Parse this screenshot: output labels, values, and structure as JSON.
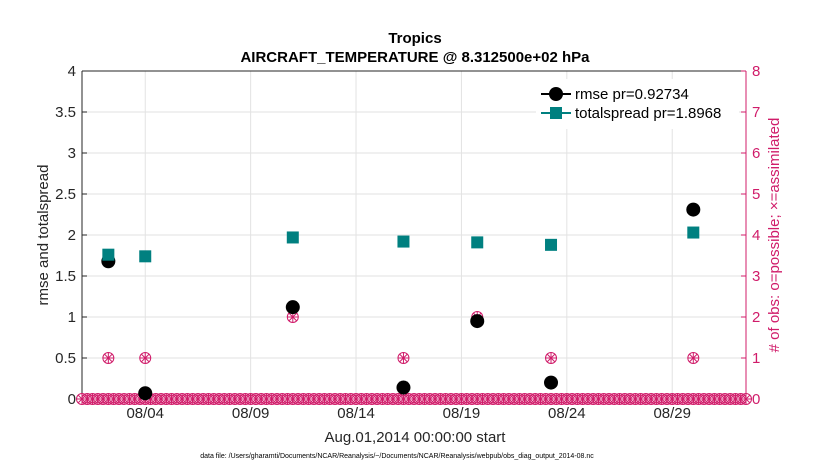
{
  "chart_data": {
    "type": "scatter",
    "title": "Tropics",
    "subtitle": "AIRCRAFT_TEMPERATURE @ 8.312500e+02 hPa",
    "xlabel": "Aug.01,2014 00:00:00 start",
    "ylabel": "rmse and totalspread",
    "ylabel_right": "# of obs: o=possible; ×=assimilated",
    "xlim": [
      0,
      31.5
    ],
    "ylim": [
      0,
      4
    ],
    "ylim_right": [
      0,
      8
    ],
    "x_ticks": [
      {
        "x": 3,
        "label": "08/04"
      },
      {
        "x": 8,
        "label": "08/09"
      },
      {
        "x": 13,
        "label": "08/14"
      },
      {
        "x": 18,
        "label": "08/19"
      },
      {
        "x": 23,
        "label": "08/24"
      },
      {
        "x": 28,
        "label": "08/29"
      }
    ],
    "y_ticks": [
      "0",
      "0.5",
      "1",
      "1.5",
      "2",
      "2.5",
      "3",
      "3.5",
      "4"
    ],
    "y_ticks_right": [
      "0",
      "1",
      "2",
      "3",
      "4",
      "5",
      "6",
      "7",
      "8"
    ],
    "grid": true,
    "legend_position": "top-right",
    "series": [
      {
        "name": "rmse pr=0.92734",
        "color": "#000000",
        "marker": "circle",
        "points": [
          {
            "x": 1.25,
            "y": 1.68
          },
          {
            "x": 3.0,
            "y": 0.07
          },
          {
            "x": 10.0,
            "y": 1.12
          },
          {
            "x": 15.25,
            "y": 0.14
          },
          {
            "x": 18.75,
            "y": 0.95
          },
          {
            "x": 22.25,
            "y": 0.2
          },
          {
            "x": 29.0,
            "y": 2.31
          }
        ]
      },
      {
        "name": "totalspread pr=1.8968",
        "color": "#008080",
        "marker": "square",
        "points": [
          {
            "x": 1.25,
            "y": 1.76
          },
          {
            "x": 3.0,
            "y": 1.74
          },
          {
            "x": 10.0,
            "y": 1.97
          },
          {
            "x": 15.25,
            "y": 1.92
          },
          {
            "x": 18.75,
            "y": 1.91
          },
          {
            "x": 22.25,
            "y": 1.88
          },
          {
            "x": 29.0,
            "y": 2.03
          }
        ]
      }
    ],
    "obs_counts": {
      "name": "# of obs",
      "color": "#d01c6a",
      "axis": "right",
      "step": 0.25,
      "start": 0,
      "end": 31.5,
      "nonzero": [
        {
          "x": 1.25,
          "possible": 1,
          "assimilated": 1
        },
        {
          "x": 3.0,
          "possible": 1,
          "assimilated": 1
        },
        {
          "x": 10.0,
          "possible": 2,
          "assimilated": 2
        },
        {
          "x": 15.25,
          "possible": 1,
          "assimilated": 1
        },
        {
          "x": 18.75,
          "possible": 2,
          "assimilated": 2
        },
        {
          "x": 22.25,
          "possible": 1,
          "assimilated": 1
        },
        {
          "x": 29.0,
          "possible": 1,
          "assimilated": 1
        }
      ]
    }
  },
  "footnote": "data file: /Users/gharamti/Documents/NCAR/Reanalysis/~/Documents/NCAR/Reanalysis/webpub/obs_diag_output_2014-08.nc"
}
